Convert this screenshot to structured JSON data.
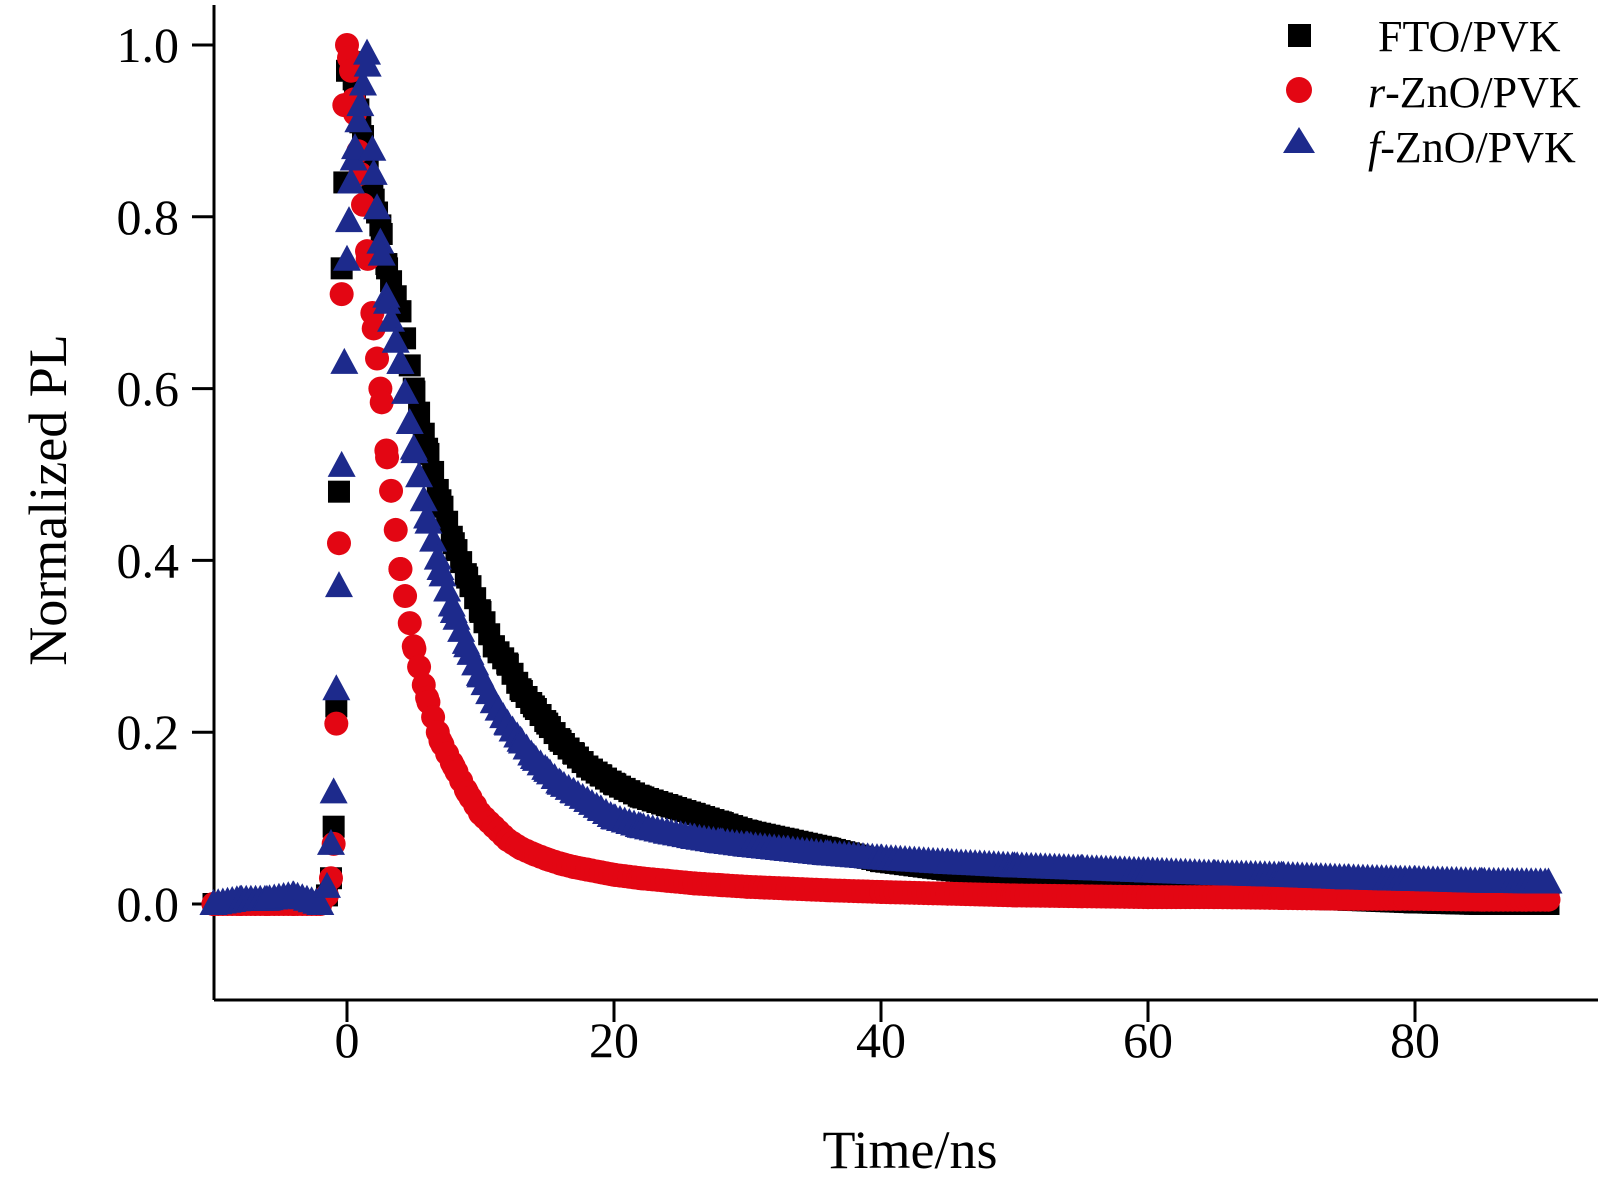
{
  "chart_data": {
    "type": "scatter",
    "title": "",
    "xlabel": "Time/ns",
    "ylabel": "Normalized PL",
    "xlim": [
      -10,
      90
    ],
    "ylim": [
      -0.08,
      1.05
    ],
    "xticks": [
      0,
      20,
      40,
      60,
      80
    ],
    "yticks": [
      0.0,
      0.2,
      0.4,
      0.6,
      0.8,
      1.0
    ],
    "xtick_labels": [
      "0",
      "20",
      "40",
      "60",
      "80"
    ],
    "ytick_labels": [
      "0.0",
      "0.2",
      "0.4",
      "0.6",
      "0.8",
      "1.0"
    ],
    "grid": false,
    "legend_position": "top-right",
    "series": [
      {
        "name": "FTO/PVK",
        "legend_prefix": "",
        "legend_rest": "FTO/PVK",
        "marker": "square",
        "color": "#000000",
        "x": [
          -10,
          -8,
          -6,
          -4,
          -2,
          -1.5,
          -1.2,
          -1.0,
          -0.8,
          -0.6,
          -0.4,
          -0.2,
          0.0,
          0.3,
          0.6,
          1.0,
          1.5,
          2.0,
          2.5,
          3.0,
          4,
          5,
          6,
          7,
          8,
          9,
          10,
          11,
          12,
          13,
          14,
          15,
          16,
          17,
          18,
          19,
          20,
          22,
          24,
          26,
          28,
          30,
          33,
          36,
          40,
          45,
          50,
          55,
          60,
          65,
          70,
          75,
          80,
          85,
          90
        ],
        "y": [
          0.0,
          0.0,
          0.0,
          0.0,
          0.0,
          0.01,
          0.03,
          0.09,
          0.23,
          0.48,
          0.74,
          0.84,
          0.97,
          0.98,
          0.95,
          0.91,
          0.87,
          0.82,
          0.79,
          0.74,
          0.69,
          0.6,
          0.53,
          0.47,
          0.42,
          0.38,
          0.34,
          0.3,
          0.28,
          0.25,
          0.23,
          0.21,
          0.19,
          0.175,
          0.16,
          0.15,
          0.14,
          0.125,
          0.115,
          0.105,
          0.095,
          0.085,
          0.075,
          0.065,
          0.05,
          0.04,
          0.03,
          0.02,
          0.015,
          0.01,
          0.007,
          0.005,
          0.002,
          0.0,
          0.0
        ]
      },
      {
        "name": "r-ZnO/PVK",
        "legend_prefix": "r",
        "legend_rest": "-ZnO/PVK",
        "marker": "circle",
        "color": "#e30613",
        "x": [
          -10,
          -8,
          -6,
          -4,
          -2,
          -1.5,
          -1.2,
          -1.0,
          -0.8,
          -0.6,
          -0.4,
          -0.2,
          0.0,
          0.3,
          0.6,
          1.0,
          1.5,
          2.0,
          2.5,
          3.0,
          4,
          5,
          6,
          7,
          8,
          9,
          10,
          11,
          12,
          13,
          14,
          15,
          16,
          17,
          18,
          19,
          20,
          22,
          24,
          26,
          28,
          30,
          33,
          36,
          40,
          45,
          50,
          55,
          60,
          65,
          70,
          75,
          80,
          85,
          90
        ],
        "y": [
          0.0,
          0.0,
          0.0,
          0.0,
          0.0,
          0.01,
          0.03,
          0.07,
          0.21,
          0.42,
          0.71,
          0.93,
          1.0,
          0.97,
          0.92,
          0.85,
          0.76,
          0.67,
          0.6,
          0.52,
          0.39,
          0.3,
          0.24,
          0.19,
          0.16,
          0.13,
          0.105,
          0.09,
          0.075,
          0.065,
          0.058,
          0.052,
          0.047,
          0.043,
          0.04,
          0.037,
          0.034,
          0.03,
          0.027,
          0.024,
          0.022,
          0.02,
          0.018,
          0.016,
          0.014,
          0.012,
          0.01,
          0.009,
          0.008,
          0.008,
          0.007,
          0.006,
          0.006,
          0.005,
          0.005
        ]
      },
      {
        "name": "f-ZnO/PVK",
        "legend_prefix": "f",
        "legend_rest": "-ZnO/PVK",
        "marker": "triangle",
        "color": "#1d2a8c",
        "x": [
          -10,
          -8,
          -6,
          -4,
          -2,
          -1.5,
          -1.2,
          -1.0,
          -0.8,
          -0.6,
          -0.4,
          -0.2,
          0.0,
          0.3,
          0.6,
          1.0,
          1.5,
          2.0,
          2.5,
          3.0,
          4,
          5,
          6,
          7,
          8,
          9,
          10,
          11,
          12,
          13,
          14,
          15,
          16,
          17,
          18,
          19,
          20,
          22,
          24,
          26,
          28,
          30,
          33,
          36,
          40,
          45,
          50,
          55,
          60,
          65,
          70,
          75,
          80,
          85,
          90
        ],
        "y": [
          0.0,
          0.005,
          0.005,
          0.01,
          0.0,
          0.02,
          0.07,
          0.13,
          0.25,
          0.37,
          0.51,
          0.63,
          0.75,
          0.84,
          0.88,
          0.93,
          0.99,
          0.85,
          0.77,
          0.7,
          0.63,
          0.53,
          0.45,
          0.39,
          0.34,
          0.3,
          0.265,
          0.235,
          0.21,
          0.19,
          0.17,
          0.155,
          0.14,
          0.13,
          0.12,
          0.11,
          0.1,
          0.09,
          0.083,
          0.077,
          0.072,
          0.068,
          0.063,
          0.058,
          0.053,
          0.048,
          0.044,
          0.041,
          0.038,
          0.035,
          0.033,
          0.03,
          0.028,
          0.026,
          0.025
        ]
      }
    ]
  }
}
